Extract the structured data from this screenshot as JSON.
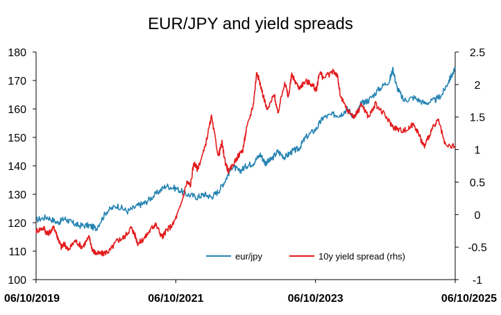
{
  "chart_data": {
    "type": "line",
    "title": "EUR/JPY and yield spreads",
    "x_ticks": [
      "06/10/2019",
      "06/10/2021",
      "06/10/2023",
      "06/10/2025"
    ],
    "x_range": [
      2019.44,
      2025.44
    ],
    "y_left": {
      "ticks": [
        "100",
        "110",
        "120",
        "130",
        "140",
        "150",
        "160",
        "170",
        "180"
      ],
      "ylim": [
        100,
        180
      ]
    },
    "y_right": {
      "ticks": [
        "-1",
        "-0.5",
        "0",
        "0.5",
        "1",
        "1.5",
        "2",
        "2.5"
      ],
      "ylim": [
        -1,
        2.5
      ]
    },
    "legend": {
      "position": "bottom-center"
    },
    "series": [
      {
        "name": "eur/jpy",
        "axis": "left",
        "color": "#2583b3",
        "x": [
          2019.44,
          2019.6,
          2019.75,
          2019.85,
          2019.95,
          2020.05,
          2020.2,
          2020.3,
          2020.45,
          2020.6,
          2020.75,
          2020.9,
          2021.0,
          2021.15,
          2021.3,
          2021.45,
          2021.6,
          2021.75,
          2021.85,
          2021.95,
          2022.05,
          2022.15,
          2022.25,
          2022.35,
          2022.45,
          2022.55,
          2022.65,
          2022.72,
          2022.8,
          2022.9,
          2023.0,
          2023.1,
          2023.2,
          2023.3,
          2023.45,
          2023.55,
          2023.7,
          2023.8,
          2023.9,
          2024.0,
          2024.1,
          2024.2,
          2024.35,
          2024.5,
          2024.55,
          2024.6,
          2024.7,
          2024.85,
          2025.0,
          2025.15,
          2025.25,
          2025.35,
          2025.44
        ],
        "values": [
          121,
          122,
          120,
          121.5,
          120,
          119,
          119,
          118,
          124,
          126,
          124,
          126,
          127,
          130,
          133,
          132,
          130,
          129,
          130,
          129,
          131,
          135,
          140,
          138,
          140,
          141,
          144,
          141,
          142,
          145,
          143,
          145,
          146,
          150,
          153,
          157,
          158,
          158,
          160,
          157,
          162,
          163,
          167,
          170,
          174,
          168,
          163,
          164,
          162,
          163,
          165,
          170,
          174
        ]
      },
      {
        "name": "10y yield spread (rhs)",
        "axis": "right",
        "color": "#e31a1c",
        "x": [
          2019.44,
          2019.55,
          2019.6,
          2019.7,
          2019.75,
          2019.8,
          2019.85,
          2019.9,
          2020.0,
          2020.1,
          2020.2,
          2020.25,
          2020.3,
          2020.4,
          2020.5,
          2020.6,
          2020.7,
          2020.8,
          2020.85,
          2020.9,
          2021.0,
          2021.1,
          2021.15,
          2021.25,
          2021.3,
          2021.4,
          2021.5,
          2021.6,
          2021.65,
          2021.7,
          2021.75,
          2021.85,
          2021.95,
          2022.05,
          2022.1,
          2022.15,
          2022.2,
          2022.3,
          2022.4,
          2022.45,
          2022.55,
          2022.6,
          2022.65,
          2022.75,
          2022.85,
          2022.9,
          2023.0,
          2023.05,
          2023.1,
          2023.2,
          2023.3,
          2023.4,
          2023.45,
          2023.5,
          2023.55,
          2023.7,
          2023.75,
          2023.8,
          2023.9,
          2024.0,
          2024.1,
          2024.2,
          2024.3,
          2024.45,
          2024.55,
          2024.65,
          2024.75,
          2024.85,
          2024.95,
          2025.0,
          2025.1,
          2025.2,
          2025.3,
          2025.44
        ],
        "values": [
          -0.25,
          -0.2,
          -0.3,
          -0.2,
          -0.35,
          -0.5,
          -0.45,
          -0.55,
          -0.4,
          -0.5,
          -0.35,
          -0.55,
          -0.6,
          -0.6,
          -0.55,
          -0.4,
          -0.35,
          -0.2,
          -0.3,
          -0.45,
          -0.35,
          -0.2,
          -0.15,
          -0.35,
          -0.25,
          -0.15,
          0.1,
          0.5,
          0.45,
          0.8,
          0.7,
          1.0,
          1.5,
          0.9,
          1.1,
          0.8,
          0.65,
          0.85,
          1.0,
          1.3,
          1.7,
          2.2,
          2.0,
          1.6,
          1.85,
          1.55,
          2.05,
          1.8,
          2.15,
          1.95,
          2.05,
          2.0,
          1.9,
          2.2,
          2.1,
          2.2,
          2.15,
          1.8,
          1.6,
          1.5,
          1.7,
          1.5,
          1.7,
          1.5,
          1.35,
          1.3,
          1.3,
          1.4,
          1.15,
          1.05,
          1.3,
          1.45,
          1.05,
          1.05
        ]
      }
    ]
  }
}
